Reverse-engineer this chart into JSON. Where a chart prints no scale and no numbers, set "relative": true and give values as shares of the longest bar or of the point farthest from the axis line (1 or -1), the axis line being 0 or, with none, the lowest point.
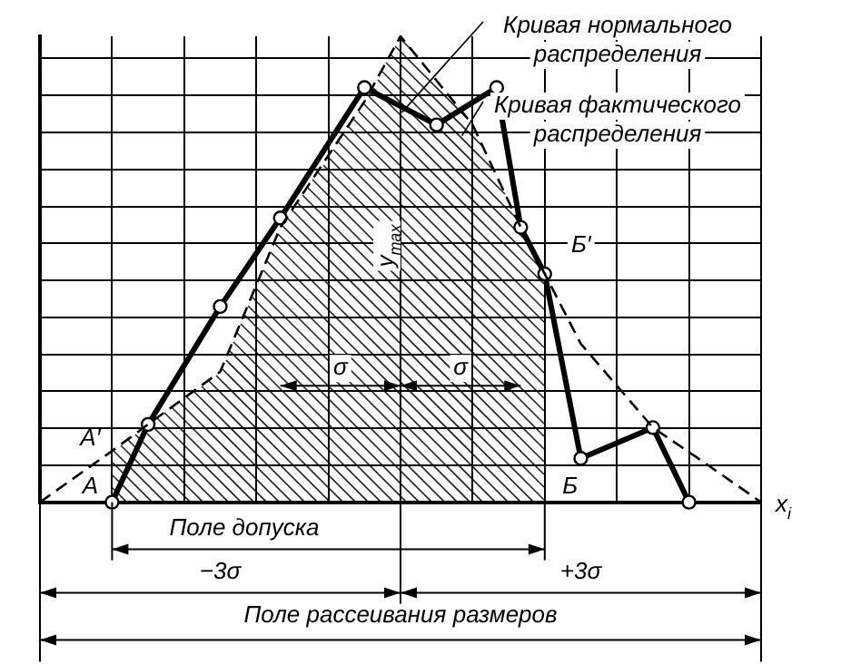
{
  "chart_data": {
    "type": "line",
    "relative": true,
    "categories": [
      null,
      null,
      null,
      null,
      null,
      null,
      null,
      null,
      null,
      null,
      null,
      null,
      null,
      null,
      null,
      null,
      null,
      null,
      null,
      null,
      null,
      null,
      null,
      null,
      null,
      null,
      null,
      null,
      null,
      null,
      null,
      null,
      null,
      null,
      null,
      null,
      null,
      null,
      null,
      null,
      null,
      null,
      null,
      null,
      null,
      null,
      null,
      null,
      null,
      null,
      null,
      null,
      null,
      null,
      null,
      null,
      null,
      null,
      null,
      null,
      null
    ],
    "grid": true,
    "legend": "top right",
    "xlabel": "x$_{i}$",
    "series": [
      {
        "name": "Кривая нормального распределения",
        "color": "#000000",
        "line_style": "dashed",
        "marker": "none",
        "values": [
          0,
          null,
          null,
          null,
          null,
          null,
          0.11,
          null,
          null,
          0.167,
          null,
          null,
          null,
          null,
          null,
          0.28,
          null,
          null,
          null,
          null,
          0.59,
          null,
          null,
          null,
          null,
          null,
          null,
          0.86,
          null,
          null,
          1,
          null,
          null,
          null,
          null,
          null,
          0.81,
          null,
          null,
          null,
          0.59,
          null,
          0.49,
          null,
          null,
          0.34,
          null,
          null,
          null,
          null,
          null,
          0.16,
          null,
          null,
          null,
          0.09,
          null,
          null,
          null,
          null,
          0
        ]
      },
      {
        "name": "Кривая фактического распределения",
        "color": "#000000",
        "line_style": "solid",
        "marker": "circle",
        "values": [
          null,
          null,
          null,
          null,
          null,
          null,
          0,
          null,
          null,
          0.167,
          null,
          null,
          null,
          null,
          null,
          0.42,
          null,
          null,
          null,
          null,
          0.61,
          null,
          null,
          null,
          null,
          null,
          null,
          0.89,
          null,
          null,
          null,
          null,
          null,
          0.81,
          null,
          null,
          null,
          null,
          0.89,
          null,
          0.59,
          null,
          0.49,
          null,
          null,
          0.094,
          null,
          null,
          null,
          null,
          null,
          0.16,
          null,
          null,
          0,
          null,
          null,
          null,
          null,
          null,
          null
        ]
      }
    ],
    "annotations": [
      "A",
      "A′",
      "Б",
      "Б′",
      "y$_{max}$",
      "σ",
      "σ",
      "Поле допуска",
      "−3σ",
      "+3σ",
      "Поле рассеивания размеров"
    ]
  }
}
